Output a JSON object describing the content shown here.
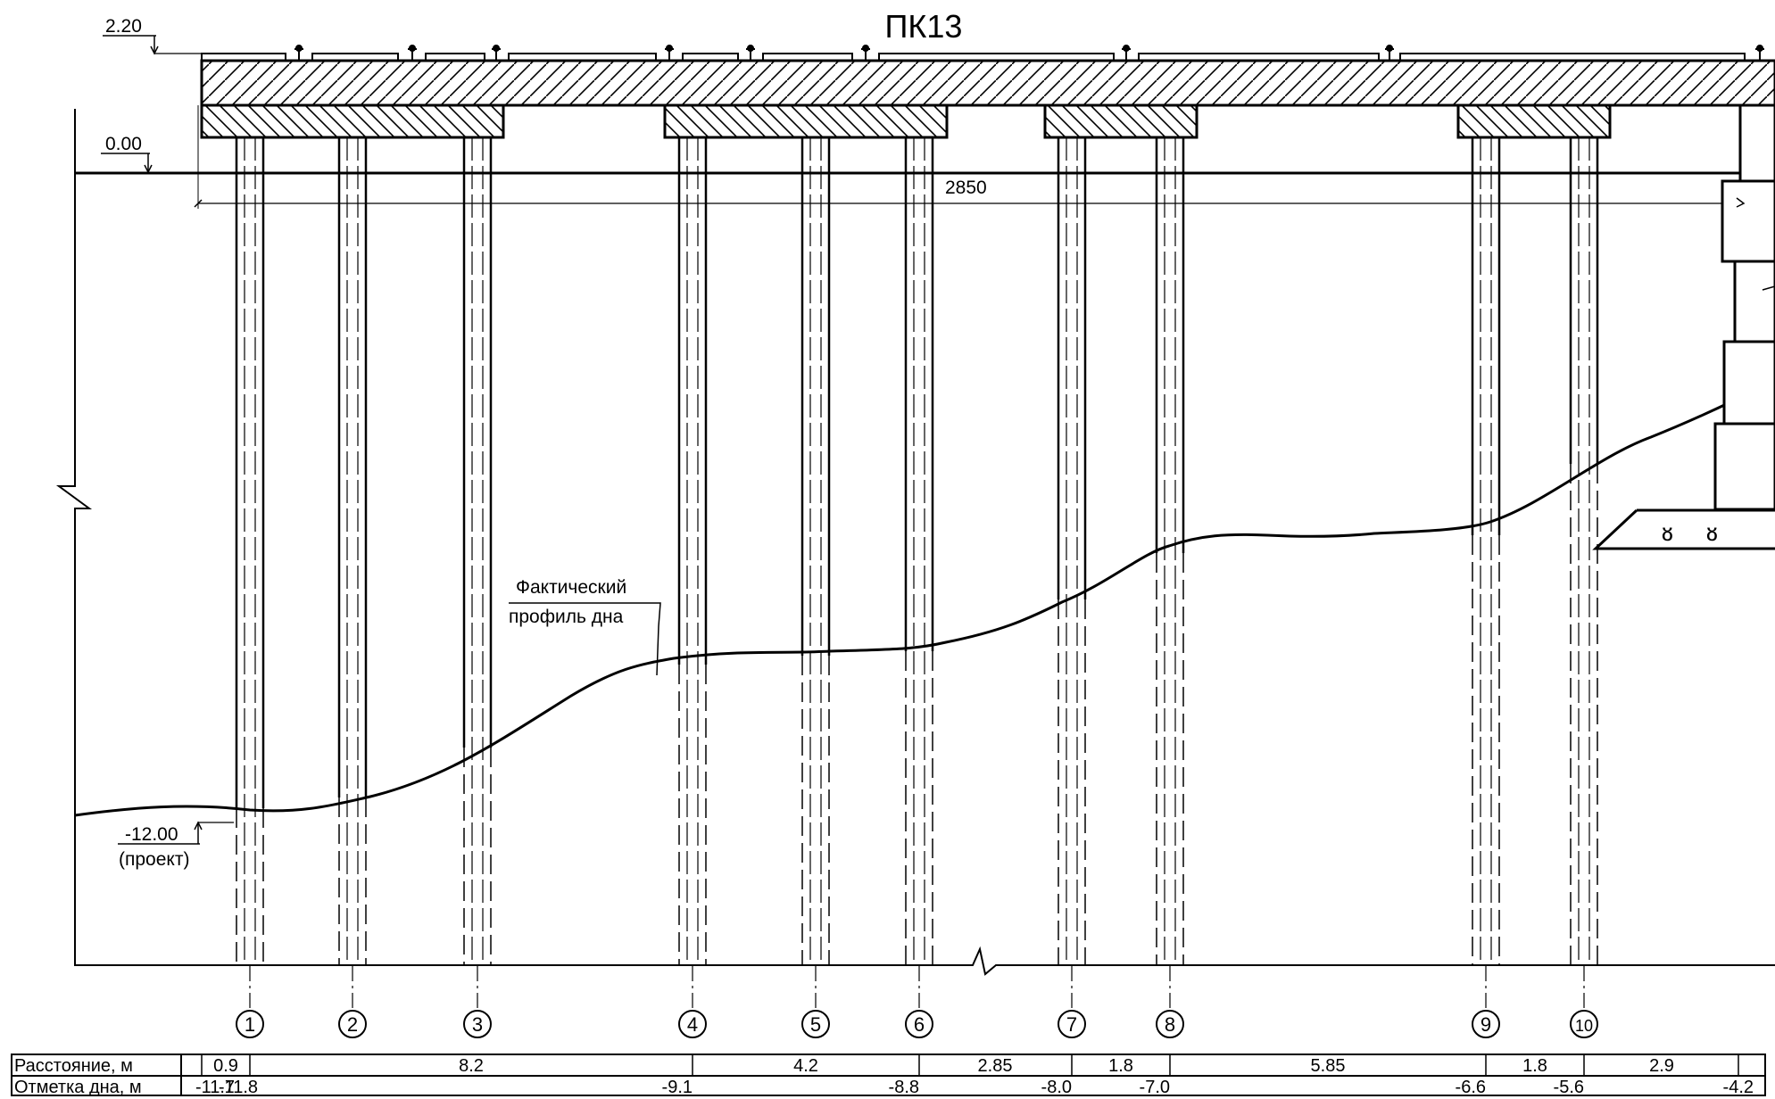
{
  "title": "ПК13",
  "levels": {
    "deck_top": "2.20",
    "water": "0.00",
    "design_bottom": "-12.00",
    "design_bottom_note": "(проект)"
  },
  "span_length": "2850",
  "profile_label": [
    "Фактический",
    "профиль дна"
  ],
  "pile_numbers": [
    "1",
    "2",
    "3",
    "4",
    "5",
    "6",
    "7",
    "8",
    "9",
    "10"
  ],
  "table": {
    "row_distance_label": "Расстояние, м",
    "row_bottom_label": "Отметка дна, м",
    "distances": [
      "0.9",
      "8.2",
      "4.2",
      "2.85",
      "1.8",
      "5.85",
      "1.8",
      "2.9"
    ],
    "bottom_marks": [
      "-11.7",
      "-11.8",
      "-9.1",
      "-8.8",
      "-8.0",
      "-7.0",
      "-6.6",
      "-5.6",
      "-4.2"
    ]
  },
  "colors": {
    "line": "#000000",
    "background": "#ffffff"
  }
}
